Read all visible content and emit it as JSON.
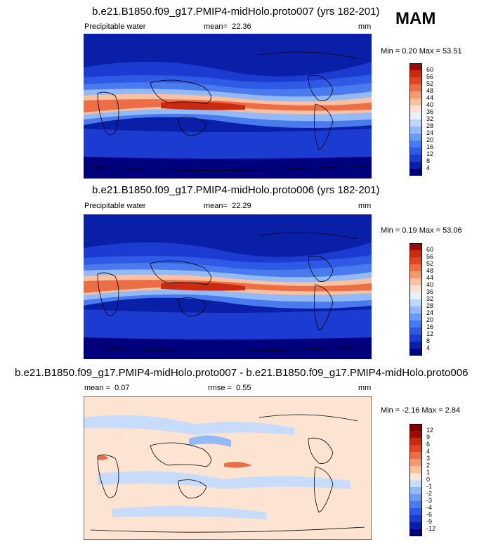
{
  "season": "MAM",
  "panels": [
    {
      "title": "b.e21.B1850.f09_g17.PMIP4-midHolo.proto007 (yrs 182-201)",
      "left_label": "Precipitable water",
      "mean_label": "mean=",
      "mean_value": "22.36",
      "units": "mm",
      "minmax": "Min =   0.20 Max =  53.51",
      "colorbar_labels": [
        "60",
        "56",
        "52",
        "48",
        "44",
        "40",
        "36",
        "32",
        "28",
        "24",
        "20",
        "16",
        "12",
        "8",
        "4"
      ],
      "colors": [
        "#00007f",
        "#0a1fa8",
        "#1c3cd1",
        "#2f5ae6",
        "#4a7bee",
        "#6c9bf3",
        "#93baf7",
        "#bdd6fa",
        "#e8f0fb",
        "#fbe0d1",
        "#f9c0a1",
        "#f49a72",
        "#eb6e46",
        "#df4524",
        "#c92a10",
        "#9b0c02"
      ]
    },
    {
      "title": "b.e21.B1850.f09_g17.PMIP4-midHolo.proto006 (yrs 182-201)",
      "left_label": "Precipitable water",
      "mean_label": "mean=",
      "mean_value": "22.29",
      "units": "mm",
      "minmax": "Min =   0.19 Max =  53.06",
      "colorbar_labels": [
        "60",
        "56",
        "52",
        "48",
        "44",
        "40",
        "36",
        "32",
        "28",
        "24",
        "20",
        "16",
        "12",
        "8",
        "4"
      ],
      "colors": [
        "#00007f",
        "#0a1fa8",
        "#1c3cd1",
        "#2f5ae6",
        "#4a7bee",
        "#6c9bf3",
        "#93baf7",
        "#bdd6fa",
        "#e8f0fb",
        "#fbe0d1",
        "#f9c0a1",
        "#f49a72",
        "#eb6e46",
        "#df4524",
        "#c92a10",
        "#9b0c02"
      ]
    },
    {
      "title": "b.e21.B1850.f09_g17.PMIP4-midHolo.proto007 - b.e21.B1850.f09_g17.PMIP4-midHolo.proto006",
      "left_label": "",
      "mean_label": "mean =",
      "mean_value": "0.07",
      "rmse_label": "rmse =",
      "rmse_value": "0.55",
      "units": "mm",
      "minmax": "Min =  -2.16 Max =    2.84",
      "colorbar_labels": [
        "12",
        "9",
        "6",
        "4",
        "3",
        "2",
        "1",
        "0",
        "-1",
        "-2",
        "-3",
        "-4",
        "-6",
        "-9",
        "-12"
      ],
      "colors": [
        "#00007f",
        "#0a1fa8",
        "#1c3cd1",
        "#2f5ae6",
        "#4a7bee",
        "#6c9bf3",
        "#93baf7",
        "#c6dcfa",
        "#fde4d2",
        "#f9c0a1",
        "#f49a72",
        "#eb6e46",
        "#df4524",
        "#c92a10",
        "#9b0c02",
        "#7a0000"
      ]
    }
  ]
}
